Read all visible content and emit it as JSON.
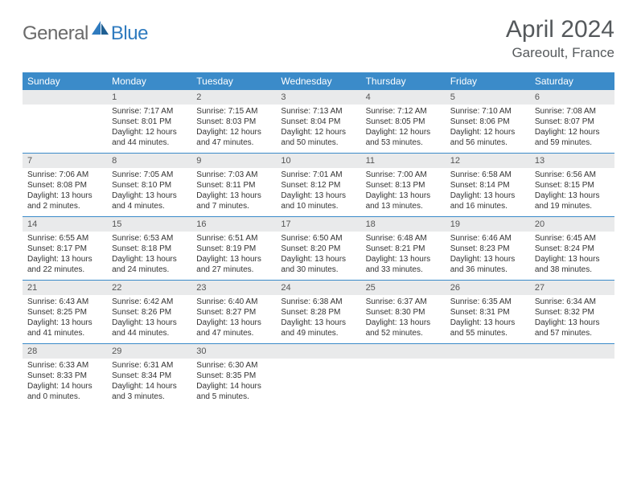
{
  "brand": {
    "text1": "General",
    "text2": "Blue"
  },
  "title": "April 2024",
  "location": "Gareoult, France",
  "weekdays": [
    "Sunday",
    "Monday",
    "Tuesday",
    "Wednesday",
    "Thursday",
    "Friday",
    "Saturday"
  ],
  "colors": {
    "header_bar": "#3b8bc9",
    "daynum_bg": "#e9eaeb",
    "text": "#333333",
    "title_text": "#55595c",
    "logo_gray": "#6a6a6a",
    "logo_blue": "#2f7bbf",
    "background": "#ffffff"
  },
  "weeks": [
    [
      {
        "n": "",
        "sr": "",
        "ss": "",
        "dl": ""
      },
      {
        "n": "1",
        "sr": "Sunrise: 7:17 AM",
        "ss": "Sunset: 8:01 PM",
        "dl": "Daylight: 12 hours and 44 minutes."
      },
      {
        "n": "2",
        "sr": "Sunrise: 7:15 AM",
        "ss": "Sunset: 8:03 PM",
        "dl": "Daylight: 12 hours and 47 minutes."
      },
      {
        "n": "3",
        "sr": "Sunrise: 7:13 AM",
        "ss": "Sunset: 8:04 PM",
        "dl": "Daylight: 12 hours and 50 minutes."
      },
      {
        "n": "4",
        "sr": "Sunrise: 7:12 AM",
        "ss": "Sunset: 8:05 PM",
        "dl": "Daylight: 12 hours and 53 minutes."
      },
      {
        "n": "5",
        "sr": "Sunrise: 7:10 AM",
        "ss": "Sunset: 8:06 PM",
        "dl": "Daylight: 12 hours and 56 minutes."
      },
      {
        "n": "6",
        "sr": "Sunrise: 7:08 AM",
        "ss": "Sunset: 8:07 PM",
        "dl": "Daylight: 12 hours and 59 minutes."
      }
    ],
    [
      {
        "n": "7",
        "sr": "Sunrise: 7:06 AM",
        "ss": "Sunset: 8:08 PM",
        "dl": "Daylight: 13 hours and 2 minutes."
      },
      {
        "n": "8",
        "sr": "Sunrise: 7:05 AM",
        "ss": "Sunset: 8:10 PM",
        "dl": "Daylight: 13 hours and 4 minutes."
      },
      {
        "n": "9",
        "sr": "Sunrise: 7:03 AM",
        "ss": "Sunset: 8:11 PM",
        "dl": "Daylight: 13 hours and 7 minutes."
      },
      {
        "n": "10",
        "sr": "Sunrise: 7:01 AM",
        "ss": "Sunset: 8:12 PM",
        "dl": "Daylight: 13 hours and 10 minutes."
      },
      {
        "n": "11",
        "sr": "Sunrise: 7:00 AM",
        "ss": "Sunset: 8:13 PM",
        "dl": "Daylight: 13 hours and 13 minutes."
      },
      {
        "n": "12",
        "sr": "Sunrise: 6:58 AM",
        "ss": "Sunset: 8:14 PM",
        "dl": "Daylight: 13 hours and 16 minutes."
      },
      {
        "n": "13",
        "sr": "Sunrise: 6:56 AM",
        "ss": "Sunset: 8:15 PM",
        "dl": "Daylight: 13 hours and 19 minutes."
      }
    ],
    [
      {
        "n": "14",
        "sr": "Sunrise: 6:55 AM",
        "ss": "Sunset: 8:17 PM",
        "dl": "Daylight: 13 hours and 22 minutes."
      },
      {
        "n": "15",
        "sr": "Sunrise: 6:53 AM",
        "ss": "Sunset: 8:18 PM",
        "dl": "Daylight: 13 hours and 24 minutes."
      },
      {
        "n": "16",
        "sr": "Sunrise: 6:51 AM",
        "ss": "Sunset: 8:19 PM",
        "dl": "Daylight: 13 hours and 27 minutes."
      },
      {
        "n": "17",
        "sr": "Sunrise: 6:50 AM",
        "ss": "Sunset: 8:20 PM",
        "dl": "Daylight: 13 hours and 30 minutes."
      },
      {
        "n": "18",
        "sr": "Sunrise: 6:48 AM",
        "ss": "Sunset: 8:21 PM",
        "dl": "Daylight: 13 hours and 33 minutes."
      },
      {
        "n": "19",
        "sr": "Sunrise: 6:46 AM",
        "ss": "Sunset: 8:23 PM",
        "dl": "Daylight: 13 hours and 36 minutes."
      },
      {
        "n": "20",
        "sr": "Sunrise: 6:45 AM",
        "ss": "Sunset: 8:24 PM",
        "dl": "Daylight: 13 hours and 38 minutes."
      }
    ],
    [
      {
        "n": "21",
        "sr": "Sunrise: 6:43 AM",
        "ss": "Sunset: 8:25 PM",
        "dl": "Daylight: 13 hours and 41 minutes."
      },
      {
        "n": "22",
        "sr": "Sunrise: 6:42 AM",
        "ss": "Sunset: 8:26 PM",
        "dl": "Daylight: 13 hours and 44 minutes."
      },
      {
        "n": "23",
        "sr": "Sunrise: 6:40 AM",
        "ss": "Sunset: 8:27 PM",
        "dl": "Daylight: 13 hours and 47 minutes."
      },
      {
        "n": "24",
        "sr": "Sunrise: 6:38 AM",
        "ss": "Sunset: 8:28 PM",
        "dl": "Daylight: 13 hours and 49 minutes."
      },
      {
        "n": "25",
        "sr": "Sunrise: 6:37 AM",
        "ss": "Sunset: 8:30 PM",
        "dl": "Daylight: 13 hours and 52 minutes."
      },
      {
        "n": "26",
        "sr": "Sunrise: 6:35 AM",
        "ss": "Sunset: 8:31 PM",
        "dl": "Daylight: 13 hours and 55 minutes."
      },
      {
        "n": "27",
        "sr": "Sunrise: 6:34 AM",
        "ss": "Sunset: 8:32 PM",
        "dl": "Daylight: 13 hours and 57 minutes."
      }
    ],
    [
      {
        "n": "28",
        "sr": "Sunrise: 6:33 AM",
        "ss": "Sunset: 8:33 PM",
        "dl": "Daylight: 14 hours and 0 minutes."
      },
      {
        "n": "29",
        "sr": "Sunrise: 6:31 AM",
        "ss": "Sunset: 8:34 PM",
        "dl": "Daylight: 14 hours and 3 minutes."
      },
      {
        "n": "30",
        "sr": "Sunrise: 6:30 AM",
        "ss": "Sunset: 8:35 PM",
        "dl": "Daylight: 14 hours and 5 minutes."
      },
      {
        "n": "",
        "sr": "",
        "ss": "",
        "dl": ""
      },
      {
        "n": "",
        "sr": "",
        "ss": "",
        "dl": ""
      },
      {
        "n": "",
        "sr": "",
        "ss": "",
        "dl": ""
      },
      {
        "n": "",
        "sr": "",
        "ss": "",
        "dl": ""
      }
    ]
  ]
}
